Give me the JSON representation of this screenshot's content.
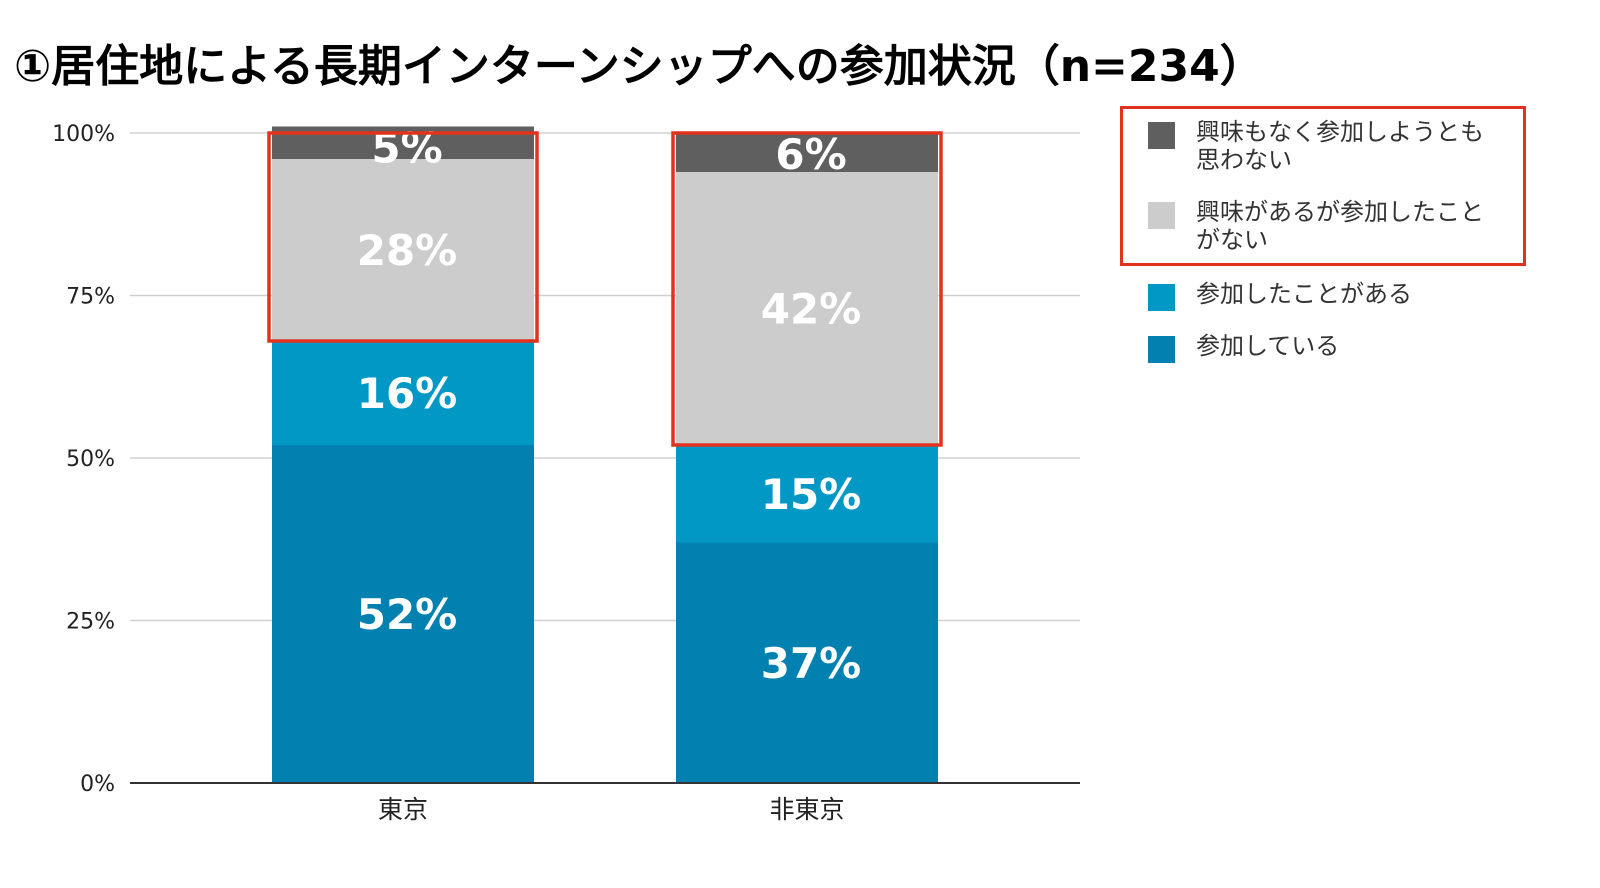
{
  "title": "①居住地による長期インターンシップへの参加状況（n=234）",
  "colors": {
    "seg_0": "#0281b0",
    "seg_1": "#0298c6",
    "seg_2": "#cccccc",
    "seg_3": "#5f5f5f",
    "highlight": "#e0321f",
    "grid": "#d0d0d0",
    "axis": "#333333"
  },
  "chart_data": {
    "type": "bar",
    "stacked": true,
    "categories": [
      "東京",
      "非東京"
    ],
    "series": [
      {
        "name": "参加している",
        "values": [
          52,
          37
        ],
        "labels": [
          "52%",
          "37%"
        ]
      },
      {
        "name": "参加したことがある",
        "values": [
          16,
          15
        ],
        "labels": [
          "16%",
          "15%"
        ]
      },
      {
        "name": "興味があるが参加したことがない",
        "values": [
          28,
          42
        ],
        "labels": [
          "28%",
          "42%"
        ]
      },
      {
        "name": "興味もなく参加しようとも思わない",
        "values": [
          5,
          6
        ],
        "labels": [
          "5%",
          "6%"
        ]
      }
    ],
    "y_ticks": [
      "0%",
      "25%",
      "50%",
      "75%",
      "100%"
    ],
    "ylim": [
      0,
      100
    ],
    "grid": true,
    "legend_position": "right",
    "highlighted": "top two segments of each bar and the first two legend entries outlined in red"
  },
  "legend": [
    {
      "label": "興味もなく参加しようとも思わない",
      "line1": "興味もなく参加しようとも",
      "line2": "思わない",
      "swatch": "seg_3"
    },
    {
      "label": "興味があるが参加したことがない",
      "line1": "興味があるが参加したこと",
      "line2": "がない",
      "swatch": "seg_2"
    },
    {
      "label": "参加したことがある",
      "line1": "参加したことがある",
      "line2": "",
      "swatch": "seg_1"
    },
    {
      "label": "参加している",
      "line1": "参加している",
      "line2": "",
      "swatch": "seg_0"
    }
  ]
}
